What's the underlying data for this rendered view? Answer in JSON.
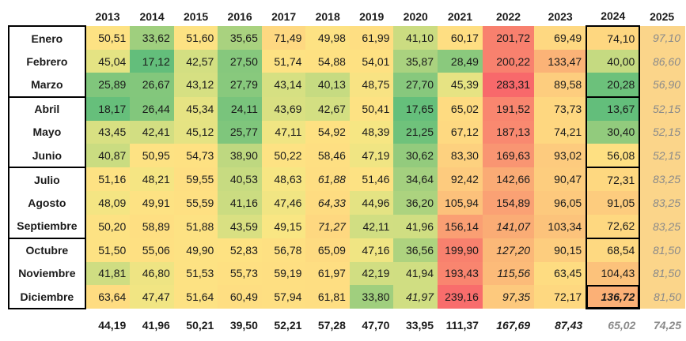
{
  "years": [
    "2013",
    "2014",
    "2015",
    "2016",
    "2017",
    "2018",
    "2019",
    "2020",
    "2021",
    "2022",
    "2023",
    "2024",
    "2025"
  ],
  "rows": [
    {
      "month": "Enero",
      "q": "start",
      "values": [
        {
          "v": "50,51",
          "c": "#fde283"
        },
        {
          "v": "33,62",
          "c": "#9fcf7e"
        },
        {
          "v": "51,60",
          "c": "#fde283"
        },
        {
          "v": "35,65",
          "c": "#a9d27f"
        },
        {
          "v": "71,49",
          "c": "#fed881"
        },
        {
          "v": "49,98",
          "c": "#fde283"
        },
        {
          "v": "61,99",
          "c": "#fede82"
        },
        {
          "v": "41,10",
          "c": "#cbdc81"
        },
        {
          "v": "60,17",
          "c": "#fede82"
        },
        {
          "v": "201,72",
          "c": "#f8806e"
        },
        {
          "v": "69,49",
          "c": "#fed881"
        },
        {
          "v": "74,10",
          "c": "#fed780",
          "hl": false
        },
        {
          "v": "97,10",
          "c": "#fbd58a",
          "est": true
        }
      ]
    },
    {
      "month": "Febrero",
      "values": [
        {
          "v": "45,04",
          "c": "#e4e383"
        },
        {
          "v": "17,12",
          "c": "#63be7b"
        },
        {
          "v": "42,57",
          "c": "#d3df82"
        },
        {
          "v": "27,50",
          "c": "#86c87d"
        },
        {
          "v": "51,74",
          "c": "#fde283"
        },
        {
          "v": "54,88",
          "c": "#fee182"
        },
        {
          "v": "54,01",
          "c": "#fee182"
        },
        {
          "v": "35,87",
          "c": "#aad27f"
        },
        {
          "v": "28,49",
          "c": "#8ac97d"
        },
        {
          "v": "200,22",
          "c": "#f8816e"
        },
        {
          "v": "133,47",
          "c": "#fbb377"
        },
        {
          "v": "40,00",
          "c": "#c5da81"
        },
        {
          "v": "86,60",
          "c": "#fbd58a",
          "est": true
        }
      ]
    },
    {
      "month": "Marzo",
      "values": [
        {
          "v": "25,89",
          "c": "#80c67c"
        },
        {
          "v": "26,67",
          "c": "#83c77c"
        },
        {
          "v": "43,12",
          "c": "#d6e082"
        },
        {
          "v": "27,79",
          "c": "#88c97d"
        },
        {
          "v": "43,14",
          "c": "#d6e082"
        },
        {
          "v": "40,13",
          "c": "#c6db81"
        },
        {
          "v": "48,75",
          "c": "#f8e383"
        },
        {
          "v": "27,70",
          "c": "#87c87d"
        },
        {
          "v": "45,39",
          "c": "#e6e383"
        },
        {
          "v": "283,31",
          "c": "#f8696b"
        },
        {
          "v": "89,58",
          "c": "#fdcd7e"
        },
        {
          "v": "20,28",
          "c": "#6cc17b"
        },
        {
          "v": "56,90",
          "c": "#fbd58a",
          "est": true
        }
      ]
    },
    {
      "month": "Abril",
      "q": "start",
      "values": [
        {
          "v": "18,17",
          "c": "#66bf7b"
        },
        {
          "v": "26,44",
          "c": "#82c77c"
        },
        {
          "v": "45,34",
          "c": "#e6e383"
        },
        {
          "v": "24,11",
          "c": "#79c47c"
        },
        {
          "v": "43,69",
          "c": "#d9e082"
        },
        {
          "v": "42,67",
          "c": "#d3df82"
        },
        {
          "v": "50,41",
          "c": "#fde283"
        },
        {
          "v": "17,65",
          "c": "#65bf7b"
        },
        {
          "v": "65,02",
          "c": "#fedb81"
        },
        {
          "v": "191,52",
          "c": "#f9866f"
        },
        {
          "v": "73,73",
          "c": "#fed780"
        },
        {
          "v": "13,67",
          "c": "#63be7b"
        },
        {
          "v": "52,15",
          "c": "#fbd58a",
          "est": true
        }
      ]
    },
    {
      "month": "Mayo",
      "values": [
        {
          "v": "43,45",
          "c": "#d8e082"
        },
        {
          "v": "42,41",
          "c": "#d2de82"
        },
        {
          "v": "45,12",
          "c": "#e5e383"
        },
        {
          "v": "25,77",
          "c": "#7fc67c"
        },
        {
          "v": "47,11",
          "c": "#f0e583"
        },
        {
          "v": "54,92",
          "c": "#fee182"
        },
        {
          "v": "48,39",
          "c": "#f6e683"
        },
        {
          "v": "21,25",
          "c": "#6fc27b"
        },
        {
          "v": "67,12",
          "c": "#fed981"
        },
        {
          "v": "187,13",
          "c": "#f98970"
        },
        {
          "v": "74,21",
          "c": "#fed780"
        },
        {
          "v": "30,40",
          "c": "#92cb7d"
        },
        {
          "v": "52,15",
          "c": "#fbd58a",
          "est": true
        }
      ]
    },
    {
      "month": "Junio",
      "values": [
        {
          "v": "40,87",
          "c": "#cadc81"
        },
        {
          "v": "50,95",
          "c": "#fde283"
        },
        {
          "v": "54,73",
          "c": "#fee182"
        },
        {
          "v": "38,90",
          "c": "#bed880"
        },
        {
          "v": "50,22",
          "c": "#fde283"
        },
        {
          "v": "58,46",
          "c": "#fedf82"
        },
        {
          "v": "47,19",
          "c": "#f0e583"
        },
        {
          "v": "30,62",
          "c": "#93cb7d"
        },
        {
          "v": "83,30",
          "c": "#fdd17f"
        },
        {
          "v": "169,63",
          "c": "#f99572"
        },
        {
          "v": "93,02",
          "c": "#fdcb7e"
        },
        {
          "v": "56,08",
          "c": "#fee082"
        },
        {
          "v": "52,15",
          "c": "#fbd58a",
          "est": true
        }
      ]
    },
    {
      "month": "Julio",
      "q": "start",
      "values": [
        {
          "v": "51,16",
          "c": "#fde283"
        },
        {
          "v": "48,21",
          "c": "#f5e583"
        },
        {
          "v": "59,55",
          "c": "#fedf82"
        },
        {
          "v": "40,53",
          "c": "#c7db81"
        },
        {
          "v": "48,63",
          "c": "#f7e683"
        },
        {
          "v": "61,88",
          "c": "#fede82",
          "it": true
        },
        {
          "v": "51,46",
          "c": "#fde283"
        },
        {
          "v": "34,64",
          "c": "#a4d07f"
        },
        {
          "v": "92,42",
          "c": "#fdcb7e"
        },
        {
          "v": "142,66",
          "c": "#faab75"
        },
        {
          "v": "90,47",
          "c": "#fdcd7e"
        },
        {
          "v": "72,31",
          "c": "#fed880"
        },
        {
          "v": "83,25",
          "c": "#fbd58a",
          "est": true
        }
      ]
    },
    {
      "month": "Agosto",
      "values": [
        {
          "v": "48,09",
          "c": "#f4e583"
        },
        {
          "v": "49,91",
          "c": "#fde283"
        },
        {
          "v": "55,59",
          "c": "#fee082"
        },
        {
          "v": "41,16",
          "c": "#cbdc81"
        },
        {
          "v": "47,46",
          "c": "#f1e583"
        },
        {
          "v": "64,33",
          "c": "#fedc81",
          "it": true
        },
        {
          "v": "44,96",
          "c": "#e4e383"
        },
        {
          "v": "36,20",
          "c": "#acd37f"
        },
        {
          "v": "105,94",
          "c": "#fcc17b"
        },
        {
          "v": "154,89",
          "c": "#faa174"
        },
        {
          "v": "96,05",
          "c": "#fdc97d"
        },
        {
          "v": "91,05",
          "c": "#fdcc7e"
        },
        {
          "v": "83,25",
          "c": "#fbd58a",
          "est": true
        }
      ]
    },
    {
      "month": "Septiembre",
      "values": [
        {
          "v": "50,20",
          "c": "#fde283"
        },
        {
          "v": "58,89",
          "c": "#fedf82"
        },
        {
          "v": "51,88",
          "c": "#fde283"
        },
        {
          "v": "43,59",
          "c": "#d9e082"
        },
        {
          "v": "49,15",
          "c": "#f9e683"
        },
        {
          "v": "71,27",
          "c": "#fed880",
          "it": true
        },
        {
          "v": "42,11",
          "c": "#d1de82"
        },
        {
          "v": "41,96",
          "c": "#d0de82"
        },
        {
          "v": "156,14",
          "c": "#fa9f73"
        },
        {
          "v": "141,07",
          "c": "#faac75",
          "it": true
        },
        {
          "v": "103,34",
          "c": "#fcc37b"
        },
        {
          "v": "72,62",
          "c": "#fed880"
        },
        {
          "v": "83,25",
          "c": "#fbd58a",
          "est": true
        }
      ]
    },
    {
      "month": "Octubre",
      "q": "start",
      "values": [
        {
          "v": "51,50",
          "c": "#fde283"
        },
        {
          "v": "55,06",
          "c": "#fee082"
        },
        {
          "v": "49,90",
          "c": "#fde283"
        },
        {
          "v": "52,83",
          "c": "#fee282"
        },
        {
          "v": "56,78",
          "c": "#fee082"
        },
        {
          "v": "65,09",
          "c": "#fedb81"
        },
        {
          "v": "47,16",
          "c": "#f0e583"
        },
        {
          "v": "36,56",
          "c": "#aed37f"
        },
        {
          "v": "199,90",
          "c": "#f8816e"
        },
        {
          "v": "127,20",
          "c": "#fbb878",
          "it": true
        },
        {
          "v": "90,15",
          "c": "#fdcd7e"
        },
        {
          "v": "68,54",
          "c": "#fed981"
        },
        {
          "v": "81,50",
          "c": "#fbd58a",
          "est": true
        }
      ]
    },
    {
      "month": "Noviembre",
      "values": [
        {
          "v": "41,81",
          "c": "#cfdd82"
        },
        {
          "v": "46,80",
          "c": "#eee483"
        },
        {
          "v": "51,53",
          "c": "#fde283"
        },
        {
          "v": "55,73",
          "c": "#fee082"
        },
        {
          "v": "59,19",
          "c": "#fedf82"
        },
        {
          "v": "61,97",
          "c": "#fede82"
        },
        {
          "v": "42,19",
          "c": "#d1de82"
        },
        {
          "v": "41,94",
          "c": "#d0de82"
        },
        {
          "v": "193,43",
          "c": "#f9856f"
        },
        {
          "v": "115,56",
          "c": "#fcbb79",
          "it": true
        },
        {
          "v": "63,45",
          "c": "#fedc81"
        },
        {
          "v": "104,43",
          "c": "#fcc27b"
        },
        {
          "v": "81,50",
          "c": "#fbd58a",
          "est": true
        }
      ]
    },
    {
      "month": "Diciembre",
      "last": true,
      "values": [
        {
          "v": "63,64",
          "c": "#fedc81"
        },
        {
          "v": "47,47",
          "c": "#f1e583"
        },
        {
          "v": "51,64",
          "c": "#fde283"
        },
        {
          "v": "60,49",
          "c": "#fede82"
        },
        {
          "v": "57,94",
          "c": "#fedf82"
        },
        {
          "v": "61,81",
          "c": "#fede82"
        },
        {
          "v": "33,80",
          "c": "#a0cf7e"
        },
        {
          "v": "41,97",
          "c": "#d0de82",
          "it": true
        },
        {
          "v": "239,16",
          "c": "#f86d6c"
        },
        {
          "v": "97,35",
          "c": "#fdc97d",
          "it": true
        },
        {
          "v": "72,17",
          "c": "#fed880"
        },
        {
          "v": "136,72",
          "c": "#fbb076",
          "hl": true
        },
        {
          "v": "81,50",
          "c": "#fbd58a",
          "est": true
        }
      ]
    }
  ],
  "totals": [
    {
      "v": "44,19"
    },
    {
      "v": "41,96"
    },
    {
      "v": "50,21"
    },
    {
      "v": "39,50"
    },
    {
      "v": "52,21"
    },
    {
      "v": "57,28"
    },
    {
      "v": "47,70"
    },
    {
      "v": "33,95"
    },
    {
      "v": "111,37"
    },
    {
      "v": "167,69",
      "it": true
    },
    {
      "v": "87,43",
      "it": true
    },
    {
      "v": "65,02",
      "grey": true
    },
    {
      "v": "74,25",
      "grey": true
    }
  ]
}
